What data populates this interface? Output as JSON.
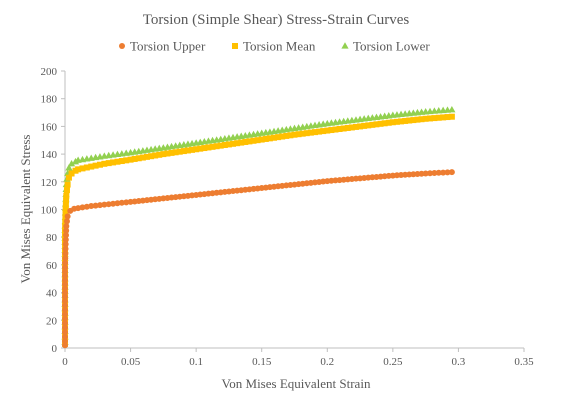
{
  "chart_data": {
    "type": "scatter",
    "title": "Torsion (Simple Shear) Stress-Strain Curves",
    "xlabel": "Von Mises Equivalent Strain",
    "ylabel": "Von Mises Equivalent Stress",
    "xlim": [
      0,
      0.35
    ],
    "ylim": [
      0,
      200
    ],
    "x_ticks": [
      "0",
      "0.05",
      "0.1",
      "0.15",
      "0.2",
      "0.25",
      "0.3",
      "0.35"
    ],
    "y_ticks": [
      "0",
      "20",
      "40",
      "60",
      "80",
      "100",
      "120",
      "140",
      "160",
      "180",
      "200"
    ],
    "grid": false,
    "legend_position": "top",
    "series": [
      {
        "name": "Torsion Upper",
        "color": "#ed7d31",
        "marker": "circle",
        "x": [
          0.0,
          0.0,
          0.0,
          0.0,
          0.0,
          0.0005,
          0.001,
          0.002,
          0.004,
          0.007,
          0.01,
          0.02,
          0.03,
          0.05,
          0.075,
          0.1,
          0.125,
          0.15,
          0.175,
          0.2,
          0.225,
          0.25,
          0.275,
          0.295
        ],
        "y": [
          2,
          8,
          18,
          37,
          58,
          75,
          88,
          95,
          99,
          100.5,
          101,
          102.5,
          103.5,
          105.5,
          108,
          110.5,
          113,
          115.5,
          118,
          120.5,
          122.5,
          124.5,
          126,
          127
        ]
      },
      {
        "name": "Torsion Mean",
        "color": "#ffc000",
        "marker": "square",
        "x": [
          0.0,
          0.0,
          0.0,
          0.0,
          0.0,
          0.0,
          0.0005,
          0.001,
          0.002,
          0.003,
          0.005,
          0.008,
          0.01,
          0.02,
          0.03,
          0.05,
          0.075,
          0.1,
          0.125,
          0.15,
          0.175,
          0.2,
          0.225,
          0.25,
          0.275,
          0.295
        ],
        "y": [
          3,
          10,
          22,
          37,
          60,
          85,
          100,
          110,
          118,
          123,
          126,
          128,
          129,
          131,
          133,
          136,
          140,
          143.5,
          147,
          150.5,
          154,
          157,
          160,
          163,
          165.5,
          167
        ]
      },
      {
        "name": "Torsion Lower",
        "color": "#92d050",
        "marker": "triangle",
        "x": [
          0.0,
          0.0,
          0.0,
          0.0,
          0.0,
          0.0,
          0.0005,
          0.001,
          0.002,
          0.003,
          0.005,
          0.008,
          0.01,
          0.02,
          0.03,
          0.05,
          0.075,
          0.1,
          0.125,
          0.15,
          0.175,
          0.2,
          0.225,
          0.25,
          0.275,
          0.295
        ],
        "y": [
          4,
          12,
          22,
          38,
          59,
          85,
          104,
          118,
          126,
          130,
          133,
          134.5,
          135.5,
          137,
          138.5,
          141,
          144.5,
          148,
          151.5,
          155,
          158.5,
          162,
          165,
          168,
          170.5,
          172
        ]
      }
    ]
  }
}
